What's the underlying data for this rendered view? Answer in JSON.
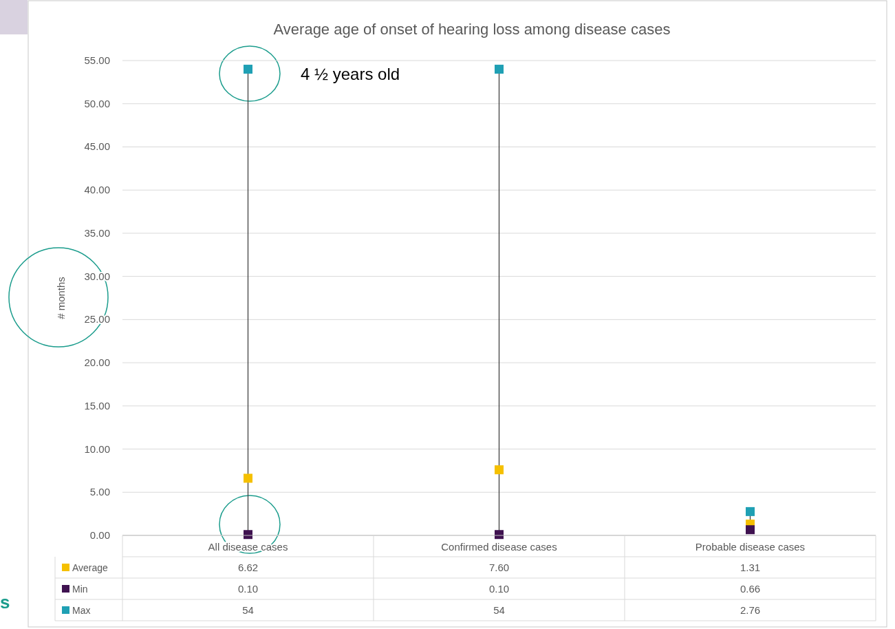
{
  "chart_data": {
    "type": "scatter",
    "title": "Average age of onset of hearing loss among disease cases",
    "ylabel": "# months",
    "categories": [
      "All disease cases",
      "Confirmed disease cases",
      "Probable disease cases"
    ],
    "series": [
      {
        "name": "Average",
        "color": "#f5c000",
        "values": [
          6.62,
          7.6,
          1.31
        ],
        "value_labels": [
          "6.62",
          "7.60",
          "1.31"
        ]
      },
      {
        "name": "Min",
        "color": "#3f1250",
        "values": [
          0.1,
          0.1,
          0.66
        ],
        "value_labels": [
          "0.10",
          "0.10",
          "0.66"
        ]
      },
      {
        "name": "Max",
        "color": "#1fa0b4",
        "values": [
          54,
          54,
          2.76
        ],
        "value_labels": [
          "54",
          "54",
          "2.76"
        ]
      }
    ],
    "ylim": [
      0,
      55
    ],
    "yticks": [
      {
        "value": 0,
        "label": "0.00"
      },
      {
        "value": 5,
        "label": "5.00"
      },
      {
        "value": 10,
        "label": "10.00"
      },
      {
        "value": 15,
        "label": "15.00"
      },
      {
        "value": 20,
        "label": "20.00"
      },
      {
        "value": 25,
        "label": "25.00"
      },
      {
        "value": 30,
        "label": "30.00"
      },
      {
        "value": 35,
        "label": "35.00"
      },
      {
        "value": 40,
        "label": "40.00"
      },
      {
        "value": 45,
        "label": "45.00"
      },
      {
        "value": 50,
        "label": "50.00"
      },
      {
        "value": 55,
        "label": "55.00"
      }
    ],
    "grid": true,
    "marker": "square",
    "legend": "bottom",
    "annotations": [
      "4 ½ years old",
      "s"
    ]
  }
}
